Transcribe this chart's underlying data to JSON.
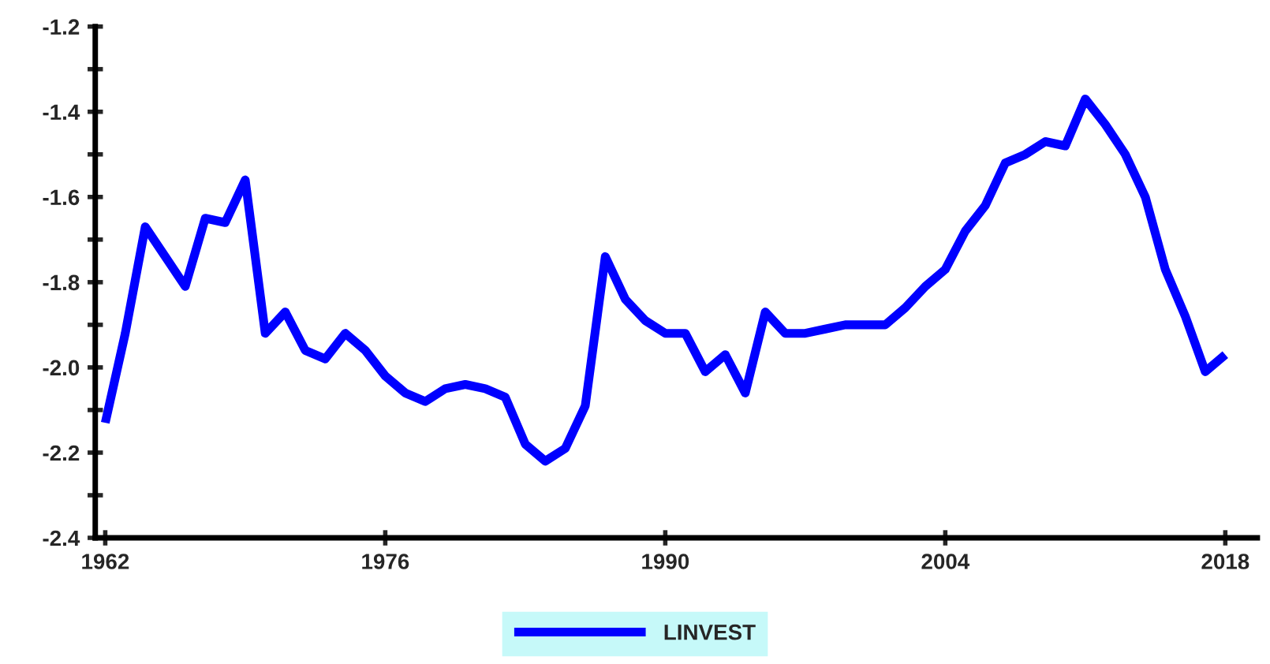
{
  "chart_data": {
    "type": "line",
    "x": [
      1962,
      1963,
      1964,
      1965,
      1966,
      1967,
      1968,
      1969,
      1970,
      1971,
      1972,
      1973,
      1974,
      1975,
      1976,
      1977,
      1978,
      1979,
      1980,
      1981,
      1982,
      1983,
      1984,
      1985,
      1986,
      1987,
      1988,
      1989,
      1990,
      1991,
      1992,
      1993,
      1994,
      1995,
      1996,
      1997,
      1998,
      1999,
      2000,
      2001,
      2002,
      2003,
      2004,
      2005,
      2006,
      2007,
      2008,
      2009,
      2010,
      2011,
      2012,
      2013,
      2014,
      2015,
      2016,
      2017,
      2018
    ],
    "series": [
      {
        "name": "LINVEST",
        "color": "#0000ff",
        "values": [
          -2.13,
          -1.92,
          -1.67,
          -1.74,
          -1.81,
          -1.65,
          -1.66,
          -1.56,
          -1.92,
          -1.87,
          -1.96,
          -1.98,
          -1.92,
          -1.96,
          -2.02,
          -2.06,
          -2.08,
          -2.05,
          -2.04,
          -2.05,
          -2.07,
          -2.18,
          -2.22,
          -2.19,
          -2.09,
          -1.74,
          -1.84,
          -1.89,
          -1.92,
          -1.92,
          -2.01,
          -1.97,
          -2.06,
          -1.87,
          -1.92,
          -1.92,
          -1.91,
          -1.9,
          -1.9,
          -1.9,
          -1.86,
          -1.81,
          -1.77,
          -1.68,
          -1.62,
          -1.52,
          -1.5,
          -1.47,
          -1.48,
          -1.37,
          -1.43,
          -1.5,
          -1.6,
          -1.77,
          -1.88,
          -2.01,
          -1.97
        ]
      }
    ],
    "xlim": [
      1961.5,
      2019.6
    ],
    "xticks": [
      1962,
      1976,
      1990,
      2004,
      2018
    ],
    "ylim": [
      -2.4,
      -1.2
    ],
    "yticks": [
      -2.4,
      {
        "value": -2.3,
        "label": null
      },
      -2.2,
      {
        "value": -2.1,
        "label": null
      },
      {
        "value": -2.0,
        "label": "-2.0"
      },
      {
        "value": -1.9,
        "label": null
      },
      -1.8,
      {
        "value": -1.7,
        "label": null
      },
      -1.6,
      {
        "value": -1.5,
        "label": null
      },
      -1.4,
      {
        "value": -1.3,
        "label": null
      },
      -1.2
    ],
    "grid": false,
    "legend": "bottom",
    "marker": "none",
    "line_style": "solid"
  }
}
